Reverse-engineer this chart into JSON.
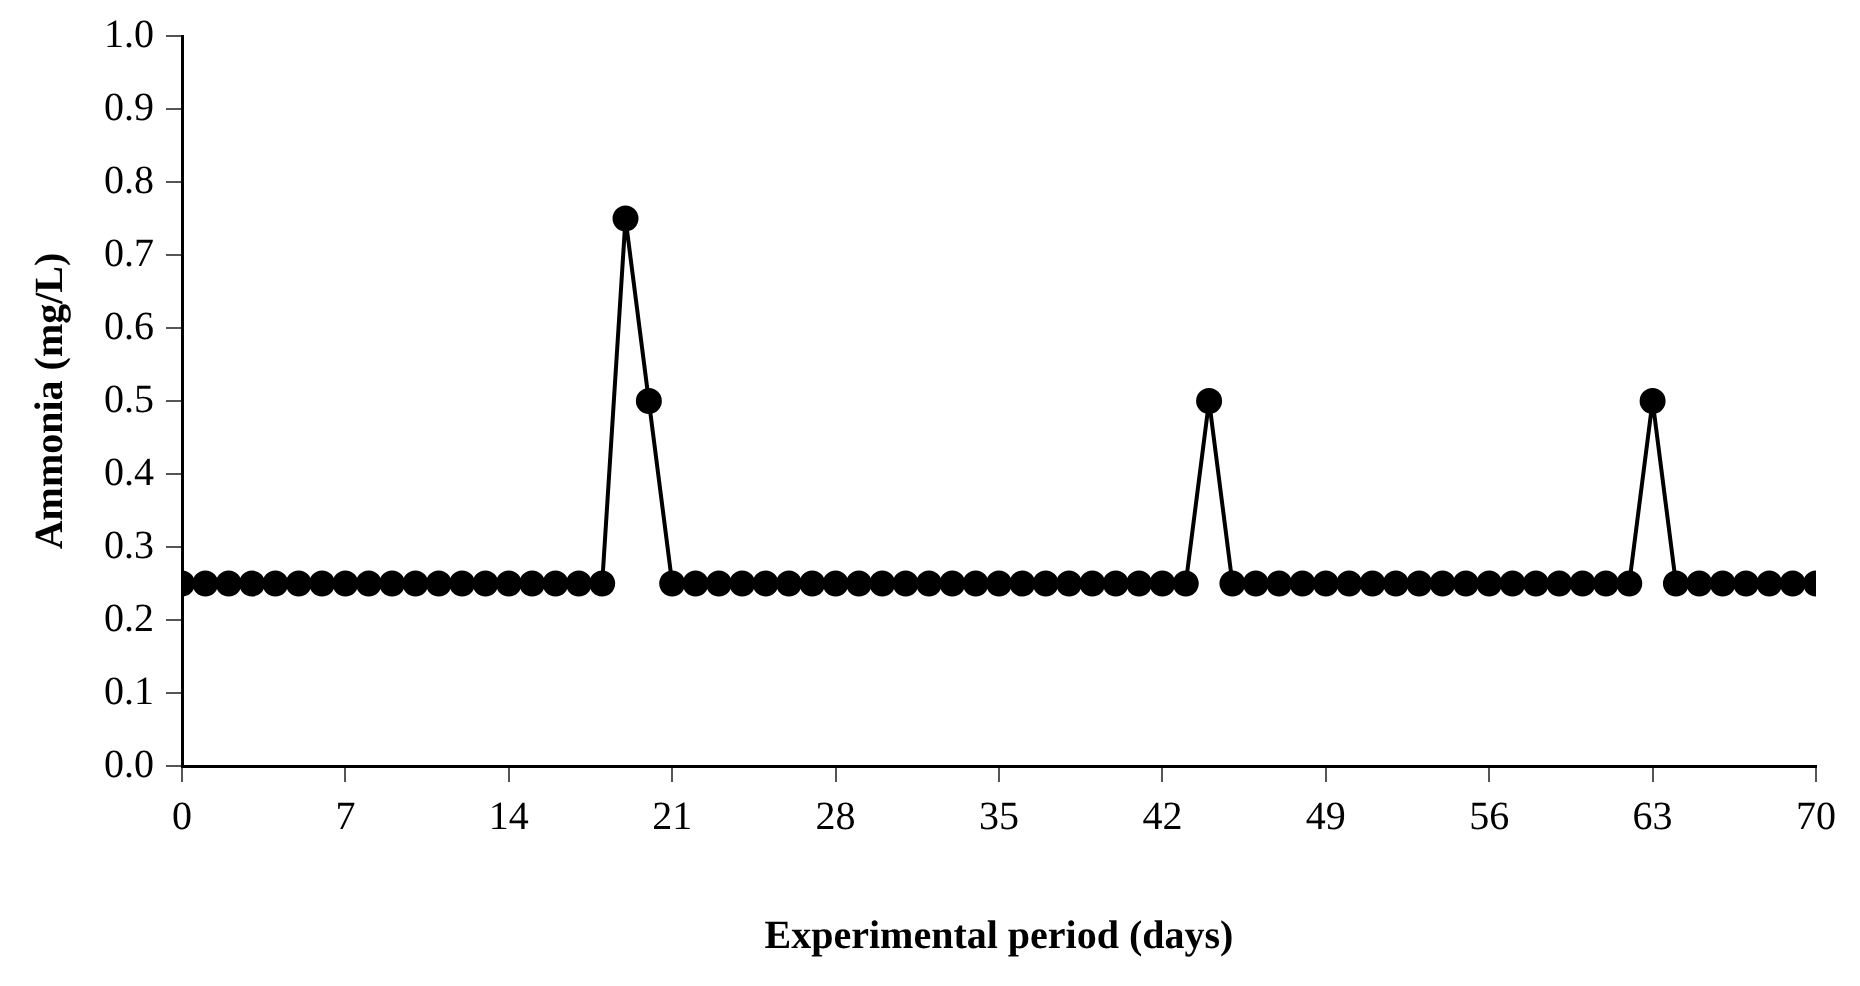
{
  "chart_data": {
    "type": "line",
    "xlabel": "Experimental period (days)",
    "ylabel": "Ammonia (mg/L)",
    "x": [
      0,
      1,
      2,
      3,
      4,
      5,
      6,
      7,
      8,
      9,
      10,
      11,
      12,
      13,
      14,
      15,
      16,
      17,
      18,
      19,
      20,
      21,
      22,
      23,
      24,
      25,
      26,
      27,
      28,
      29,
      30,
      31,
      32,
      33,
      34,
      35,
      36,
      37,
      38,
      39,
      40,
      41,
      42,
      43,
      44,
      45,
      46,
      47,
      48,
      49,
      50,
      51,
      52,
      53,
      54,
      55,
      56,
      57,
      58,
      59,
      60,
      61,
      62,
      63,
      64,
      65,
      66,
      67,
      68,
      69,
      70
    ],
    "series": [
      {
        "color": "#000000",
        "values": [
          0.25,
          0.25,
          0.25,
          0.25,
          0.25,
          0.25,
          0.25,
          0.25,
          0.25,
          0.25,
          0.25,
          0.25,
          0.25,
          0.25,
          0.25,
          0.25,
          0.25,
          0.25,
          0.25,
          0.75,
          0.5,
          0.25,
          0.25,
          0.25,
          0.25,
          0.25,
          0.25,
          0.25,
          0.25,
          0.25,
          0.25,
          0.25,
          0.25,
          0.25,
          0.25,
          0.25,
          0.25,
          0.25,
          0.25,
          0.25,
          0.25,
          0.25,
          0.25,
          0.25,
          0.5,
          0.25,
          0.25,
          0.25,
          0.25,
          0.25,
          0.25,
          0.25,
          0.25,
          0.25,
          0.25,
          0.25,
          0.25,
          0.25,
          0.25,
          0.25,
          0.25,
          0.25,
          0.25,
          0.5,
          0.25,
          0.25,
          0.25,
          0.25,
          0.25,
          0.25,
          0.25
        ]
      }
    ],
    "xlim": [
      0,
      70
    ],
    "xticks": [
      0,
      7,
      14,
      21,
      28,
      35,
      42,
      49,
      56,
      63,
      70
    ],
    "ylim": [
      0,
      1
    ],
    "yticks": [
      {
        "value": 0,
        "label": "0.0"
      },
      0.1,
      0.2,
      0.3,
      0.4,
      0.5,
      0.6,
      0.7,
      0.8,
      0.9,
      {
        "value": 1,
        "label": "1.0"
      }
    ],
    "grid": false,
    "legend": false,
    "marker": "circle",
    "line_style": "solid"
  }
}
